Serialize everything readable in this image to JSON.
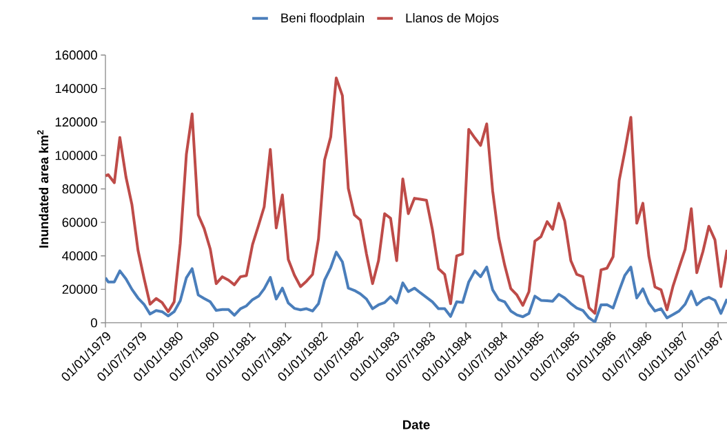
{
  "chart_data": {
    "type": "line",
    "xlabel": "Date",
    "ylabel": "Inundated area km$^{2}$",
    "legend": "top",
    "x": [
      "1979-01-01",
      "1979-01-15",
      "1979-02-15",
      "1979-03-15",
      "1979-04-15",
      "1979-05-15",
      "1979-06-15",
      "1979-07-15",
      "1979-08-15",
      "1979-09-15",
      "1979-10-15",
      "1979-11-15",
      "1979-12-15",
      "1980-01-15",
      "1980-02-15",
      "1980-03-15",
      "1980-04-15",
      "1980-05-15",
      "1980-06-15",
      "1980-07-15",
      "1980-08-15",
      "1980-09-15",
      "1980-10-15",
      "1980-11-15",
      "1980-12-15",
      "1981-01-15",
      "1981-02-15",
      "1981-03-15",
      "1981-04-15",
      "1981-05-15",
      "1981-06-15",
      "1981-07-15",
      "1981-08-15",
      "1981-09-15",
      "1981-10-15",
      "1981-11-15",
      "1981-12-15",
      "1982-01-15",
      "1982-02-15",
      "1982-03-15",
      "1982-04-15",
      "1982-05-15",
      "1982-06-15",
      "1982-07-15",
      "1982-08-15",
      "1982-09-15",
      "1982-10-15",
      "1982-11-15",
      "1982-12-15",
      "1983-01-15",
      "1983-02-15",
      "1983-03-15",
      "1983-04-15",
      "1983-05-15",
      "1983-06-15",
      "1983-07-15",
      "1983-08-15",
      "1983-09-15",
      "1983-10-15",
      "1983-11-15",
      "1983-12-15",
      "1984-01-15",
      "1984-02-15",
      "1984-03-15",
      "1984-04-15",
      "1984-05-15",
      "1984-06-15",
      "1984-07-15",
      "1984-08-15",
      "1984-09-15",
      "1984-10-15",
      "1984-11-15",
      "1984-12-15",
      "1985-01-15",
      "1985-02-15",
      "1985-03-15",
      "1985-04-15",
      "1985-05-15",
      "1985-06-15",
      "1985-07-15",
      "1985-08-15",
      "1985-09-15",
      "1985-10-15",
      "1985-11-15",
      "1985-12-15",
      "1986-01-15",
      "1986-02-15",
      "1986-03-15",
      "1986-04-15",
      "1986-05-15",
      "1986-06-15",
      "1986-07-15",
      "1986-08-15",
      "1986-09-15",
      "1986-10-15",
      "1986-11-15",
      "1986-12-15",
      "1987-01-15",
      "1987-02-15",
      "1987-03-15",
      "1987-04-15",
      "1987-05-15",
      "1987-06-15",
      "1987-07-15",
      "1987-08-15"
    ],
    "series": [
      {
        "name": "Beni floodplain",
        "color": "#4a7ebb",
        "values": [
          26900,
          24400,
          24400,
          31000,
          26200,
          20000,
          14800,
          11100,
          5200,
          7300,
          6600,
          4100,
          6600,
          13200,
          26900,
          32300,
          16600,
          14500,
          12500,
          7400,
          7900,
          7900,
          4500,
          8400,
          10100,
          13800,
          15900,
          20300,
          27100,
          14200,
          20700,
          11800,
          8600,
          7700,
          8400,
          7000,
          11400,
          25500,
          33000,
          42200,
          36400,
          20700,
          19300,
          17300,
          14200,
          8400,
          10700,
          12100,
          15600,
          11800,
          23800,
          18600,
          20700,
          17900,
          15200,
          12500,
          8400,
          8400,
          3800,
          12500,
          12100,
          24400,
          31000,
          27500,
          33300,
          19700,
          13800,
          12500,
          7000,
          4700,
          3600,
          5600,
          15900,
          13400,
          13200,
          12900,
          17000,
          14800,
          11500,
          8800,
          7400,
          2900,
          500,
          10700,
          10800,
          8800,
          19300,
          28200,
          33300,
          14800,
          20300,
          11800,
          7000,
          8400,
          2900,
          4900,
          7000,
          11100,
          18900,
          10700,
          13800,
          15200,
          13400,
          5600,
          14200
        ]
      },
      {
        "name": "Llanos de Mojos",
        "color": "#be4b48",
        "values": [
          87800,
          88500,
          83700,
          110700,
          87100,
          70700,
          43300,
          26900,
          11100,
          14500,
          12100,
          6600,
          12500,
          47400,
          100800,
          124800,
          64500,
          56300,
          44000,
          23400,
          27500,
          25500,
          22700,
          27500,
          28200,
          46700,
          58400,
          69300,
          103600,
          56700,
          76400,
          37800,
          28500,
          21600,
          24800,
          28900,
          50100,
          97400,
          111100,
          146300,
          135800,
          80300,
          64500,
          61400,
          41200,
          23400,
          37100,
          65200,
          62500,
          37100,
          86000,
          65200,
          74400,
          73800,
          73200,
          55600,
          32300,
          28900,
          11400,
          39900,
          41200,
          115600,
          110400,
          106000,
          118900,
          78900,
          50800,
          34400,
          20400,
          16600,
          10400,
          18600,
          48800,
          51500,
          60400,
          55900,
          71400,
          60800,
          37100,
          28900,
          27500,
          9000,
          5600,
          31600,
          32600,
          39500,
          85100,
          102200,
          122800,
          59500,
          71400,
          39900,
          21400,
          19700,
          7700,
          22100,
          33000,
          44000,
          68200,
          29900,
          42600,
          57700,
          49500,
          21600,
          43600
        ]
      }
    ],
    "xlim": [
      "1979-01-01",
      "1987-08-15"
    ],
    "xticks": [
      {
        "value": "1979-01-01",
        "label": "01/01/1979"
      },
      {
        "value": "1979-07-01",
        "label": "01/07/1979"
      },
      {
        "value": "1980-01-01",
        "label": "01/01/1980"
      },
      {
        "value": "1980-07-01",
        "label": "01/07/1980"
      },
      {
        "value": "1981-01-01",
        "label": "01/01/1981"
      },
      {
        "value": "1981-07-01",
        "label": "01/07/1981"
      },
      {
        "value": "1982-01-01",
        "label": "01/01/1982"
      },
      {
        "value": "1982-07-01",
        "label": "01/07/1982"
      },
      {
        "value": "1983-01-01",
        "label": "01/01/1983"
      },
      {
        "value": "1983-07-01",
        "label": "01/07/1983"
      },
      {
        "value": "1984-01-01",
        "label": "01/01/1984"
      },
      {
        "value": "1984-07-01",
        "label": "01/07/1984"
      },
      {
        "value": "1985-01-01",
        "label": "01/01/1985"
      },
      {
        "value": "1985-07-01",
        "label": "01/07/1985"
      },
      {
        "value": "1986-01-01",
        "label": "01/01/1986"
      },
      {
        "value": "1986-07-01",
        "label": "01/07/1986"
      },
      {
        "value": "1987-01-01",
        "label": "01/01/1987"
      },
      {
        "value": "1987-07-01",
        "label": "01/07/1987"
      }
    ],
    "ylim": [
      0,
      160000
    ],
    "yticks": [
      0,
      20000,
      40000,
      60000,
      80000,
      100000,
      120000,
      140000,
      160000
    ]
  }
}
